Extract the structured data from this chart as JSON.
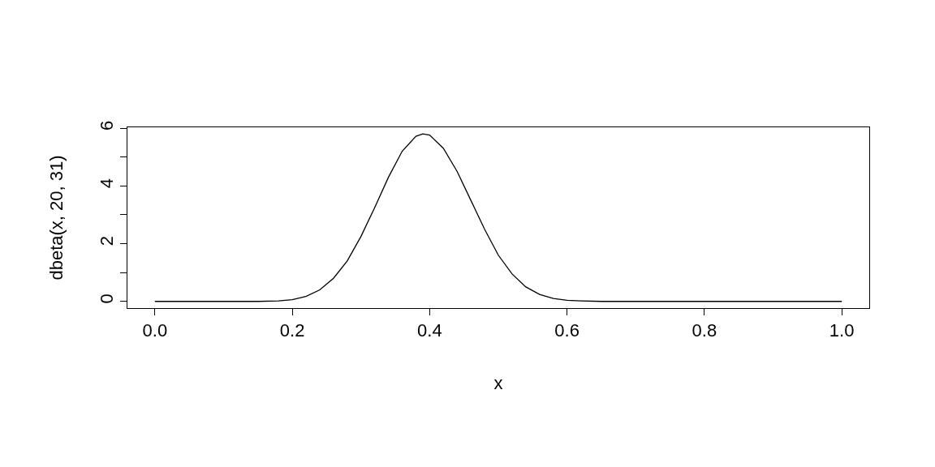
{
  "chart_data": {
    "type": "line",
    "xlabel": "x",
    "ylabel": "dbeta(x, 20, 31)",
    "x": [
      0,
      0.05,
      0.1,
      0.15,
      0.18,
      0.2,
      0.22,
      0.24,
      0.26,
      0.28,
      0.3,
      0.32,
      0.34,
      0.36,
      0.38,
      0.39,
      0.4,
      0.42,
      0.44,
      0.46,
      0.48,
      0.5,
      0.52,
      0.54,
      0.56,
      0.58,
      0.6,
      0.62,
      0.65,
      0.7,
      0.8,
      0.9,
      1.0
    ],
    "series": [
      {
        "color": "#000000",
        "values": [
          0,
          0,
          0,
          0,
          0.02,
          0.06,
          0.17,
          0.4,
          0.8,
          1.4,
          2.25,
          3.25,
          4.3,
          5.2,
          5.72,
          5.8,
          5.76,
          5.3,
          4.5,
          3.5,
          2.5,
          1.6,
          0.95,
          0.5,
          0.24,
          0.1,
          0.04,
          0.02,
          0,
          0,
          0,
          0,
          0
        ]
      }
    ],
    "xlim": [
      -0.04,
      1.04
    ],
    "ylim": [
      -0.232,
      6.03
    ],
    "xticks": [
      {
        "value": 0,
        "label": "0.0"
      },
      {
        "value": 0.2,
        "label": "0.2"
      },
      {
        "value": 0.4,
        "label": "0.4"
      },
      {
        "value": 0.6,
        "label": "0.6"
      },
      {
        "value": 0.8,
        "label": "0.8"
      },
      {
        "value": 1.0,
        "label": "1.0"
      }
    ],
    "yticks": [
      0,
      {
        "value": 1,
        "label": null
      },
      2,
      {
        "value": 3,
        "label": null
      },
      4,
      {
        "value": 5,
        "label": null
      },
      6
    ],
    "legend": false,
    "marker": "none",
    "line_style": "solid"
  }
}
